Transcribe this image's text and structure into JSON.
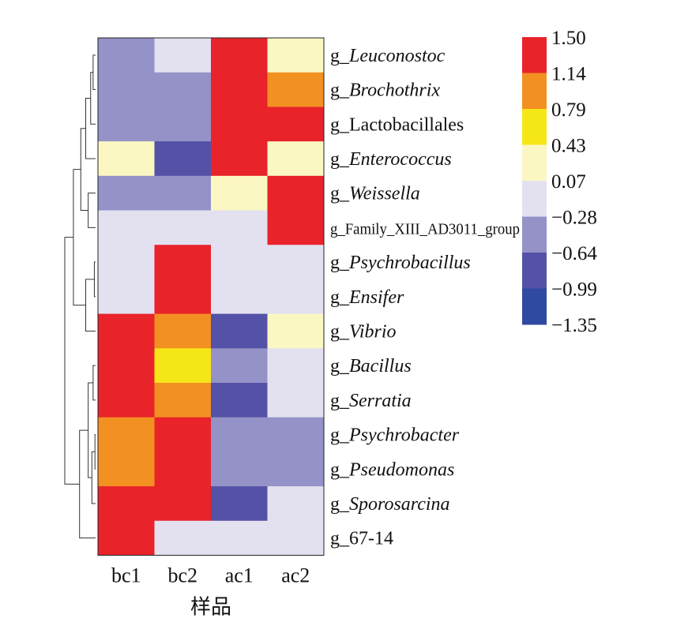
{
  "chart_data": {
    "type": "heatmap",
    "xlabel": "样品",
    "columns": [
      "bc1",
      "bc2",
      "ac1",
      "ac2"
    ],
    "rows": [
      {
        "prefix": "g_",
        "name": "Leuconostoc",
        "italic": true
      },
      {
        "prefix": "g_",
        "name": "Brochothrix",
        "italic": true
      },
      {
        "prefix": "g_",
        "name": "Lactobacillales",
        "italic": false
      },
      {
        "prefix": "g_",
        "name": "Enterococcus",
        "italic": true
      },
      {
        "prefix": "g_",
        "name": "Weissella",
        "italic": true
      },
      {
        "prefix": "g_",
        "name": "Family_XIII_AD3011_group",
        "italic": false
      },
      {
        "prefix": "g_",
        "name": "Psychrobacillus",
        "italic": true
      },
      {
        "prefix": "g_",
        "name": "Ensifer",
        "italic": true
      },
      {
        "prefix": "g_",
        "name": "Vibrio",
        "italic": true
      },
      {
        "prefix": "g_",
        "name": "Bacillus",
        "italic": true
      },
      {
        "prefix": "g_",
        "name": "Serratia",
        "italic": true
      },
      {
        "prefix": "g_",
        "name": "Psychrobacter",
        "italic": true
      },
      {
        "prefix": "g_",
        "name": "Pseudomonas",
        "italic": true
      },
      {
        "prefix": "g_",
        "name": "Sporosarcina",
        "italic": true
      },
      {
        "prefix": "g_",
        "name": "67-14",
        "italic": false
      }
    ],
    "values": [
      [
        -0.64,
        -0.28,
        1.5,
        0.07
      ],
      [
        -0.64,
        -0.64,
        1.5,
        0.79
      ],
      [
        -0.64,
        -0.64,
        1.14,
        1.14
      ],
      [
        0.07,
        -0.99,
        1.5,
        0.07
      ],
      [
        -0.64,
        -0.64,
        0.07,
        1.5
      ],
      [
        -0.28,
        -0.28,
        -0.28,
        1.5
      ],
      [
        -0.28,
        1.5,
        -0.28,
        -0.28
      ],
      [
        -0.28,
        1.5,
        -0.28,
        -0.28
      ],
      [
        1.14,
        0.79,
        -0.99,
        0.07
      ],
      [
        1.5,
        0.43,
        -0.64,
        -0.28
      ],
      [
        1.5,
        0.79,
        -0.99,
        -0.28
      ],
      [
        0.79,
        1.14,
        -0.64,
        -0.64
      ],
      [
        0.79,
        1.14,
        -0.64,
        -0.64
      ],
      [
        1.14,
        1.14,
        -0.99,
        -0.28
      ],
      [
        1.5,
        -0.28,
        -0.28,
        -0.28
      ]
    ],
    "legend": {
      "labels": [
        "1.50",
        "1.14",
        "0.79",
        "0.43",
        "0.07",
        "−0.28",
        "−0.64",
        "−0.99",
        "−1.35"
      ],
      "values": [
        1.5,
        1.14,
        0.79,
        0.43,
        0.07,
        -0.28,
        -0.64,
        -0.99,
        -1.35
      ],
      "colors": [
        "#e8232a",
        "#f39022",
        "#f5e618",
        "#fbf7c2",
        "#e3e1f0",
        "#9592c8",
        "#5352a6",
        "#2f4aa0"
      ]
    },
    "dendrogram": {
      "leaf_order": [
        0,
        1,
        2,
        3,
        4,
        5,
        6,
        7,
        8,
        9,
        10,
        11,
        12,
        13,
        14
      ],
      "merges": [
        [
          0,
          1,
          0.02
        ],
        [
          6,
          7,
          0.01
        ],
        [
          9,
          10,
          0.02
        ],
        [
          11,
          12,
          0.005
        ],
        [
          15,
          2,
          0.04
        ],
        [
          18,
          13,
          0.03
        ],
        [
          4,
          5,
          0.06
        ],
        [
          19,
          3,
          0.08
        ],
        [
          16,
          8,
          0.08
        ],
        [
          17,
          20,
          0.06
        ],
        [
          22,
          21,
          0.12
        ],
        [
          24,
          14,
          0.13
        ],
        [
          23,
          25,
          0.18
        ],
        [
          27,
          26,
          0.25
        ]
      ]
    }
  }
}
